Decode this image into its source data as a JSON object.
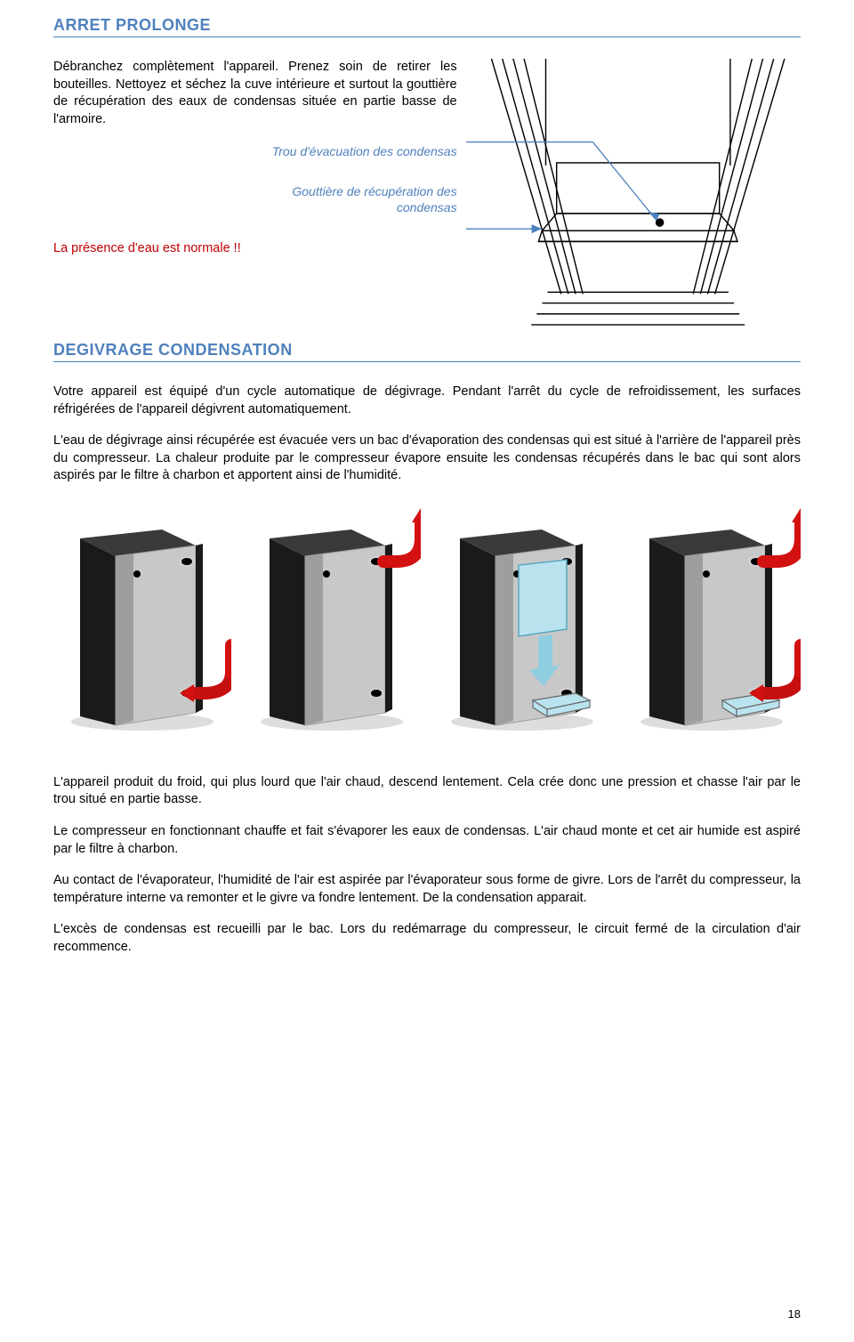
{
  "section1": {
    "heading": "ARRET PROLONGE",
    "p1": "Débranchez complètement l'appareil. Prenez soin de retirer les bouteilles. Nettoyez et séchez la cuve intérieure et surtout la gouttière de récupération des eaux de condensas située en partie basse de l'armoire.",
    "caption1": "Trou d'évacuation des condensas",
    "caption2_l1": "Gouttière de récupération des",
    "caption2_l2": "condensas",
    "red": "La présence d'eau est normale !!"
  },
  "section2": {
    "heading": "DEGIVRAGE CONDENSATION",
    "p1": "Votre appareil est équipé d'un cycle automatique de dégivrage. Pendant l'arrêt du cycle de refroidissement, les surfaces réfrigérées de l'appareil dégivrent automatiquement.",
    "p2": "L'eau de dégivrage ainsi récupérée est évacuée vers un bac d'évaporation des condensas qui est situé à l'arrière de l'appareil près du compresseur. La chaleur produite par le compresseur évapore ensuite les condensas récupérés dans le bac qui sont alors aspirés par le filtre à charbon et apportent ainsi de l'humidité.",
    "p3": "L'appareil produit du froid, qui plus lourd que l'air chaud, descend lentement. Cela crée donc une pression et chasse l'air par le trou situé en partie basse.",
    "p4": "Le compresseur en fonctionnant chauffe et fait s'évaporer les eaux de condensas. L'air chaud monte et cet air humide est aspiré par le filtre à charbon.",
    "p5": "Au contact de l'évaporateur, l'humidité de l'air est aspirée par l'évaporateur sous forme de givre. Lors de l'arrêt du compresseur, la température interne va remonter et le givre va fondre lentement. De la condensation apparait.",
    "p6": "L'excès de condensas est recueilli par le bac. Lors du redémarrage du compresseur, le circuit fermé de la circulation d'air recommence."
  },
  "diagram": {
    "stroke": "#000000",
    "arrow_fill": "#000000",
    "leader_stroke": "#4f81bd"
  },
  "cabinets": {
    "variants": [
      {
        "arrow_in_bottom": true,
        "arrow_out_top": false,
        "filter": false,
        "tray": false
      },
      {
        "arrow_in_bottom": false,
        "arrow_out_top": true,
        "filter": false,
        "tray": false
      },
      {
        "arrow_in_bottom": false,
        "arrow_out_top": false,
        "filter": true,
        "tray": true
      },
      {
        "arrow_in_bottom": true,
        "arrow_out_top": true,
        "filter": false,
        "tray": true
      }
    ],
    "colors": {
      "cab_side": "#1a1a1a",
      "cab_top": "#3a3a3a",
      "back_panel": "#c8c8c8",
      "back_panel_dark": "#9e9e9e",
      "edge": "#000000",
      "hole": "#000000",
      "hole_rim": "#d0d0d0",
      "arrow": "#d31111",
      "arrow_dark": "#a00d0d",
      "filter_fill": "#b9e3ef",
      "filter_stroke": "#5aa7bf",
      "tray_fill": "#b9e3ef",
      "tray_stroke": "#6a6a6a",
      "drop_arrow": "#8fcde0"
    }
  },
  "page_number": "18"
}
